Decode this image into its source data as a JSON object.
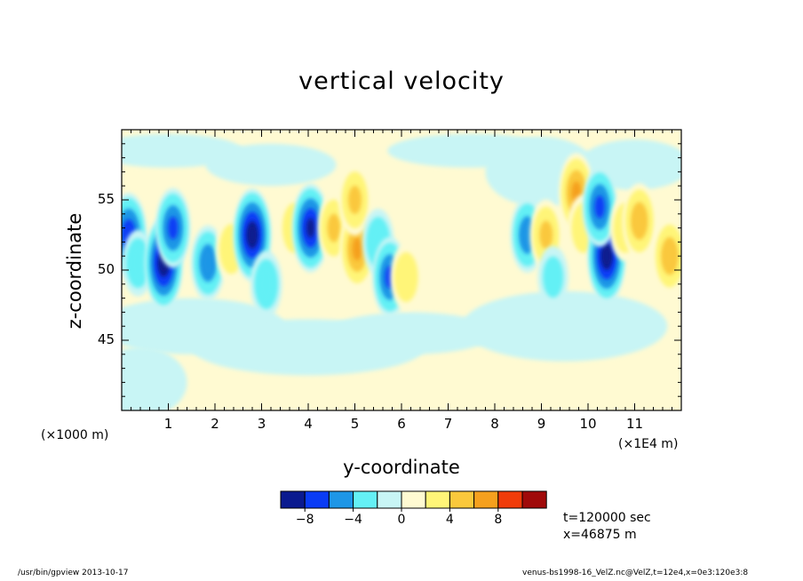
{
  "chart_data": {
    "type": "heatmap",
    "title": "vertical velocity",
    "xlabel": "y-coordinate",
    "ylabel": "z-coordinate",
    "x_unit_left": "(×1000 m)",
    "x_unit_right": "(×1E4 m)",
    "xlim": [
      0,
      12
    ],
    "ylim": [
      40,
      60
    ],
    "x_ticks": [
      "1",
      "2",
      "3",
      "4",
      "5",
      "6",
      "7",
      "8",
      "9",
      "10",
      "11"
    ],
    "y_ticks": [
      "45",
      "50",
      "55"
    ],
    "colorbar": {
      "levels": [
        -10,
        -8,
        -6,
        -4,
        -2,
        0,
        2,
        4,
        6,
        8,
        10
      ],
      "labels": [
        "−8",
        "−4",
        "0",
        "4",
        "8"
      ],
      "colors": [
        "#0a1a8f",
        "#0a3cf5",
        "#1e96e6",
        "#64f0f5",
        "#c8f5f5",
        "#fffad2",
        "#fff578",
        "#fac83c",
        "#f5a01e",
        "#f03c0a",
        "#a00a0a"
      ]
    },
    "features": [
      {
        "y": 0.15,
        "z": 52.5,
        "w": -7
      },
      {
        "y": 0.35,
        "z": 50.5,
        "w": -3
      },
      {
        "y": 0.9,
        "z": 50.5,
        "w": -9
      },
      {
        "y": 1.1,
        "z": 53.0,
        "w": -6
      },
      {
        "y": 1.85,
        "z": 50.5,
        "w": -5
      },
      {
        "y": 2.35,
        "z": 51.5,
        "w": 3
      },
      {
        "y": 2.8,
        "z": 52.5,
        "w": -9
      },
      {
        "y": 3.1,
        "z": 49.0,
        "w": -3
      },
      {
        "y": 3.7,
        "z": 53.0,
        "w": 3
      },
      {
        "y": 4.05,
        "z": 53.0,
        "w": -8
      },
      {
        "y": 4.55,
        "z": 53.0,
        "w": 4
      },
      {
        "y": 5.05,
        "z": 51.5,
        "w": 6
      },
      {
        "y": 5.0,
        "z": 55.0,
        "w": 4
      },
      {
        "y": 5.5,
        "z": 52.0,
        "w": -3
      },
      {
        "y": 5.75,
        "z": 49.5,
        "w": -6
      },
      {
        "y": 6.1,
        "z": 49.5,
        "w": 3
      },
      {
        "y": 8.7,
        "z": 52.5,
        "w": -5
      },
      {
        "y": 9.1,
        "z": 52.5,
        "w": 4
      },
      {
        "y": 9.25,
        "z": 49.5,
        "w": -2
      },
      {
        "y": 9.75,
        "z": 55.5,
        "w": 6
      },
      {
        "y": 9.9,
        "z": 53.0,
        "w": 3
      },
      {
        "y": 10.4,
        "z": 51.0,
        "w": -9
      },
      {
        "y": 10.25,
        "z": 54.5,
        "w": -6
      },
      {
        "y": 10.8,
        "z": 53.0,
        "w": 3
      },
      {
        "y": 11.1,
        "z": 53.5,
        "w": 5
      },
      {
        "y": 11.75,
        "z": 51.0,
        "w": 5
      }
    ]
  },
  "info": {
    "time": "t=120000 sec",
    "x": "x=46875 m"
  },
  "footer": {
    "left": "/usr/bin/gpview   2013-10-17",
    "right": "venus-bs1998-16_VelZ.nc@VelZ,t=12e4,x=0e3:120e3:8"
  }
}
